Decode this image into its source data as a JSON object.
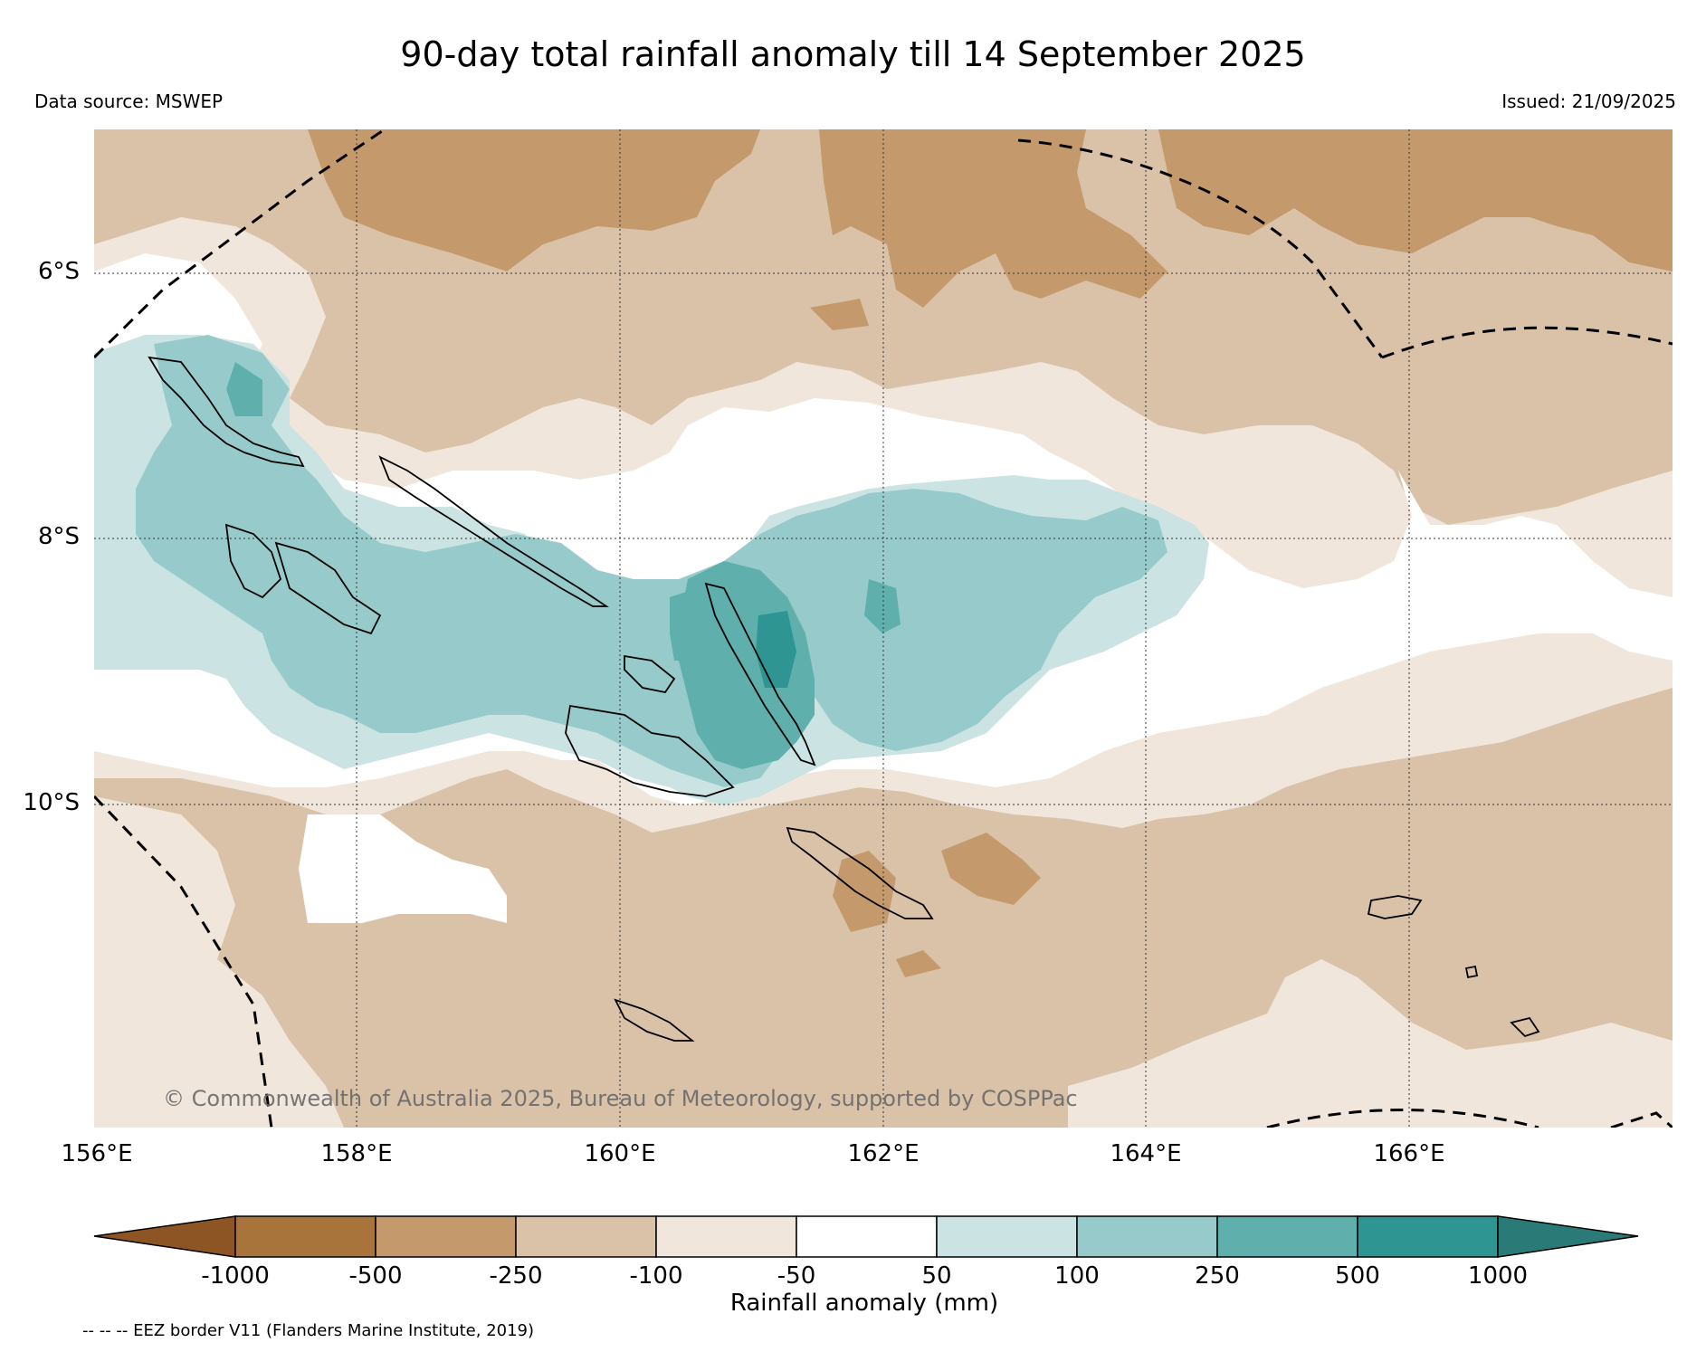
{
  "title": "90-day total rainfall anomaly till 14 September 2025",
  "data_source": "Data source: MSWEP",
  "issued": "Issued: 21/09/2025",
  "copyright": "© Commonwealth of Australia 2025, Bureau of Meteorology, supported by COSPPac",
  "eez_note": "-- -- -- EEZ border V11 (Flanders Marine Institute, 2019)",
  "map": {
    "lat_labels": [
      "6°S",
      "8°S",
      "10°S"
    ],
    "lon_labels": [
      "156°E",
      "158°E",
      "160°E",
      "162°E",
      "164°E",
      "166°E"
    ],
    "lon_range": [
      156,
      168
    ],
    "lat_range": [
      -4.9,
      -12.5
    ]
  },
  "colorbar": {
    "label": "Rainfall anomaly (mm)",
    "ticks": [
      "-1000",
      "-500",
      "-250",
      "-100",
      "-50",
      "50",
      "100",
      "250",
      "500",
      "1000"
    ],
    "colors": [
      "#8c5523",
      "#a9733c",
      "#c49a6c",
      "#dac2a9",
      "#f0e6dc",
      "#ffffff",
      "#cbe4e3",
      "#97cbcb",
      "#5fafad",
      "#2e9592",
      "#2a7a77"
    ]
  }
}
